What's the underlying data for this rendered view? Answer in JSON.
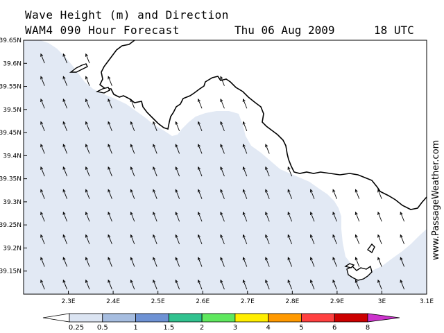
{
  "header": {
    "title": "Wave Height (m) and Direction",
    "model": "WAM4 090 Hour Forecast",
    "date": "Thu 06 Aug 2009",
    "time": "18 UTC"
  },
  "watermark": "www.PassageWeather.com",
  "map": {
    "lon_range": [
      2.2,
      3.1
    ],
    "lat_range": [
      39.1,
      39.65
    ],
    "lon_ticks": [
      "2.3E",
      "2.4E",
      "2.5E",
      "2.6E",
      "2.7E",
      "2.8E",
      "2.9E",
      "3E",
      "3.1E"
    ],
    "lat_ticks": [
      "39.65N",
      "39.6N",
      "39.55N",
      "39.5N",
      "39.45N",
      "39.4N",
      "39.35N",
      "39.3N",
      "39.25N",
      "39.2N",
      "39.15N"
    ],
    "sea_color": "#e2e9f4",
    "land_color": "#ffffff",
    "coastline_color": "#000000",
    "arrow_direction": "north-northwest"
  },
  "colorbar": {
    "ticks": [
      "0.25",
      "0.5",
      "1",
      "1.5",
      "2",
      "3",
      "4",
      "5",
      "6",
      "8"
    ],
    "colors": [
      "#ffffff",
      "#dbe4f2",
      "#a6bde0",
      "#6e92d4",
      "#31c28f",
      "#5fe85f",
      "#ffee00",
      "#ff9900",
      "#ff4040",
      "#cc0000",
      "#cc33cc"
    ]
  }
}
